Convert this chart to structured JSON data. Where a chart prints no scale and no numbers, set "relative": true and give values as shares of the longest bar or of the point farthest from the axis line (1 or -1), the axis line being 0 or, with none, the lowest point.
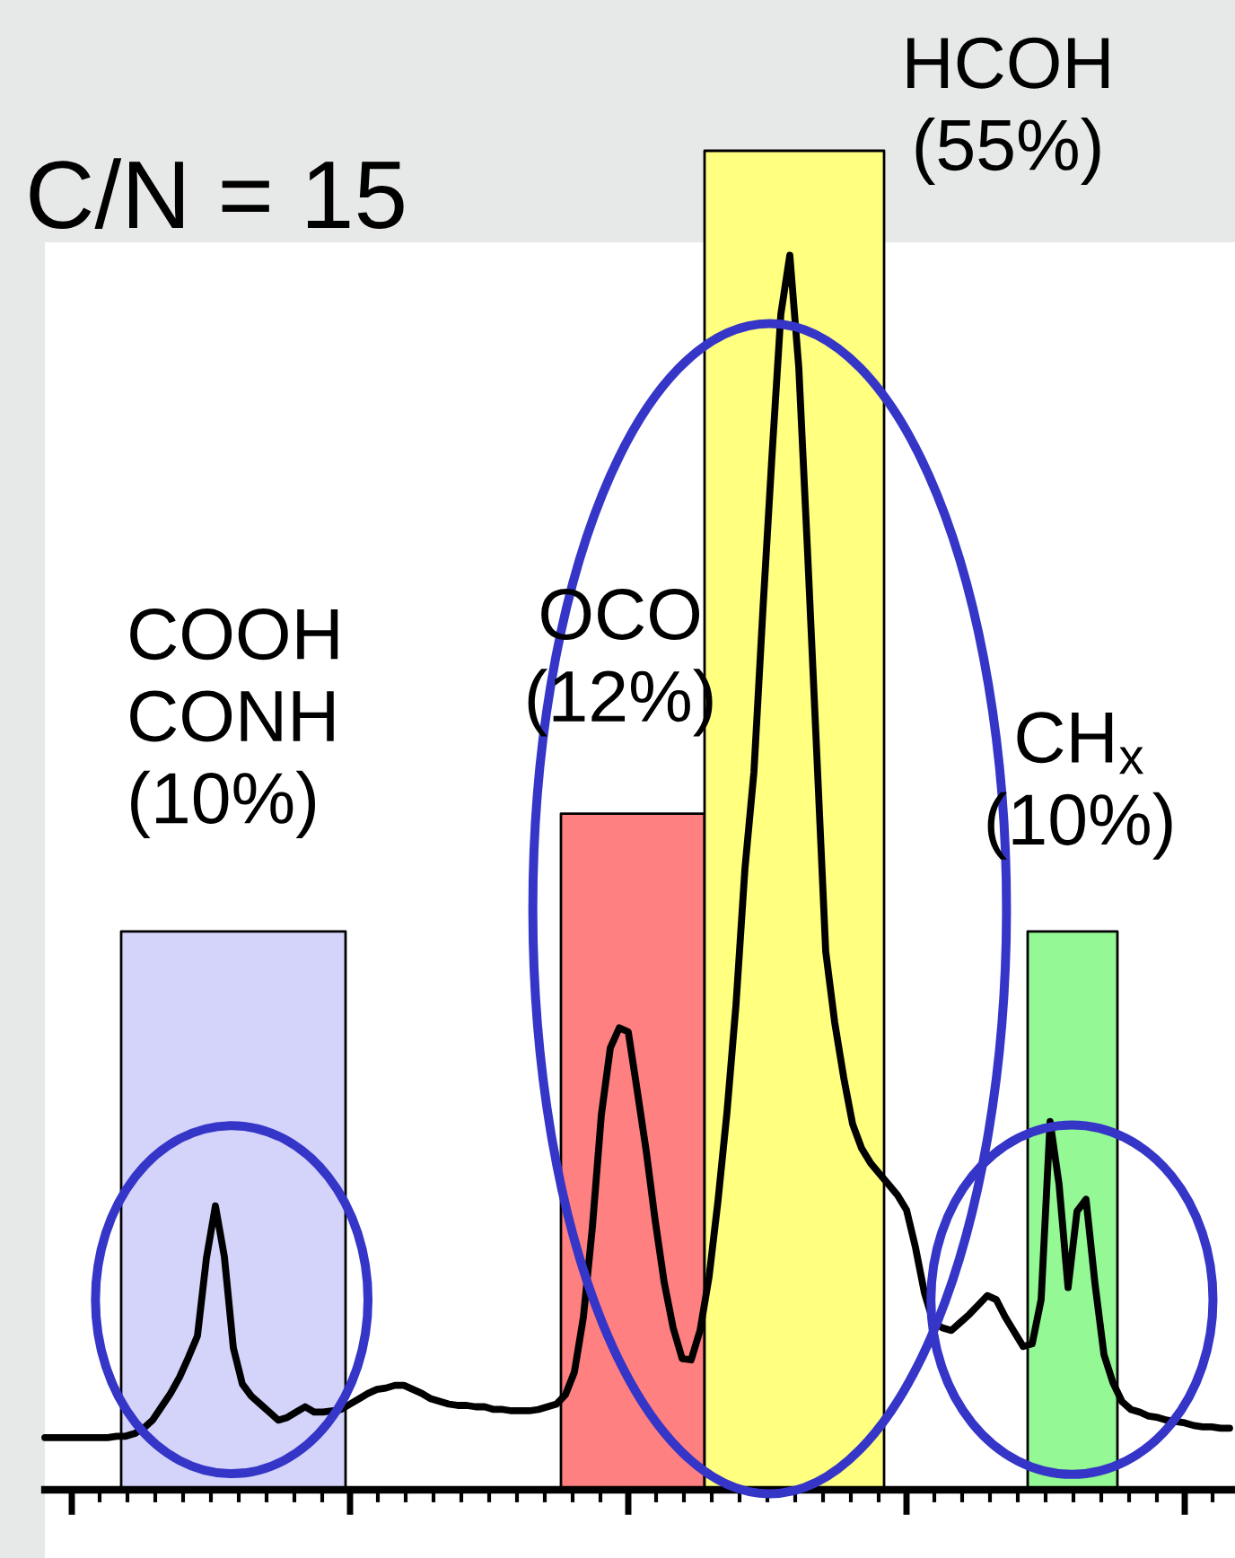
{
  "chart_data": {
    "type": "line",
    "title": "C/N = 15",
    "relative": true,
    "categories": [
      null,
      null,
      null,
      null,
      null,
      null,
      null,
      null,
      null,
      null,
      null,
      null,
      null,
      null,
      null,
      null,
      null,
      null,
      null,
      null,
      null,
      null,
      null,
      null,
      null,
      null,
      null,
      null,
      null,
      null,
      null,
      null,
      null,
      null,
      null,
      null,
      null,
      null,
      null,
      null,
      null,
      null,
      null,
      null,
      null,
      null,
      null,
      null,
      null,
      null,
      null,
      null,
      null,
      null,
      null,
      null,
      null,
      null,
      null,
      null,
      null,
      null,
      null,
      null,
      null,
      null,
      null,
      null,
      null,
      null,
      null,
      null,
      null,
      null,
      null,
      null,
      null,
      null,
      null,
      null,
      null,
      null,
      null,
      null,
      null,
      null,
      null,
      null,
      null,
      null,
      null,
      null,
      null,
      null,
      null,
      null,
      null,
      null,
      null,
      null,
      null,
      null,
      null,
      null,
      null,
      null,
      null,
      null,
      null,
      null,
      null,
      null,
      null,
      null,
      null,
      null,
      null,
      null,
      null,
      null,
      null,
      null,
      null,
      null,
      null,
      null,
      null,
      null,
      null,
      null,
      null,
      null,
      null
    ],
    "series": [
      {
        "type": "area",
        "name": "COOH\nCONH\n(10%)",
        "color": "#d4d4fb",
        "values": [
          null,
          null,
          null,
          null,
          null,
          null,
          null,
          null,
          null,
          0.417,
          0.417,
          0.417,
          0.417,
          0.417,
          0.417,
          0.417,
          0.417,
          0.417,
          0.417,
          0.417,
          0.417,
          0.417,
          0.417,
          0.417,
          0.417,
          0.417,
          0.417,
          0.417,
          0.417,
          0.417,
          0.417,
          0.417,
          0.417,
          0.417,
          null,
          null,
          null,
          null,
          null,
          null,
          null,
          null,
          null,
          null,
          null,
          null,
          null,
          null,
          null,
          null,
          null,
          null,
          null,
          null,
          null,
          null,
          null,
          null,
          null,
          null,
          null,
          null,
          null,
          null,
          null,
          null,
          null,
          null,
          null,
          null,
          null,
          null,
          null,
          null,
          null,
          null,
          null,
          null,
          null,
          null,
          null,
          null,
          null,
          null,
          null,
          null,
          null,
          null,
          null,
          null,
          null,
          null,
          null,
          null,
          null,
          null,
          null,
          null,
          null,
          null,
          null,
          null,
          null,
          null,
          null,
          null,
          null,
          null,
          null,
          null,
          null,
          null,
          null,
          null,
          null,
          null,
          null,
          null,
          null,
          null,
          null,
          null,
          null,
          null,
          null,
          null,
          null,
          null,
          null,
          null,
          null,
          null,
          null
        ]
      },
      {
        "type": "area",
        "name": "OCO\n(12%)",
        "color": "#ff8080",
        "values": [
          null,
          null,
          null,
          null,
          null,
          null,
          null,
          null,
          null,
          null,
          null,
          null,
          null,
          null,
          null,
          null,
          null,
          null,
          null,
          null,
          null,
          null,
          null,
          null,
          null,
          null,
          null,
          null,
          null,
          null,
          null,
          null,
          null,
          null,
          null,
          null,
          null,
          null,
          null,
          null,
          null,
          null,
          null,
          null,
          null,
          null,
          null,
          null,
          null,
          null,
          null,
          null,
          null,
          null,
          null,
          null,
          null,
          null,
          0.505,
          0.505,
          0.505,
          0.505,
          0.505,
          0.505,
          0.505,
          0.505,
          0.505,
          0.505,
          0.505,
          0.505,
          0.505,
          0.505,
          0.505,
          0.505,
          null,
          null,
          null,
          null,
          null,
          null,
          null,
          null,
          null,
          null,
          null,
          null,
          null,
          null,
          null,
          null,
          null,
          null,
          null,
          null,
          null,
          null,
          null,
          null,
          null,
          null,
          null,
          null,
          null,
          null,
          null,
          null,
          null,
          null,
          null,
          null,
          null,
          null,
          null,
          null,
          null,
          null,
          null,
          null,
          null,
          null,
          null,
          null,
          null,
          null,
          null,
          null,
          null,
          null,
          null,
          null,
          null,
          null,
          null
        ]
      },
      {
        "type": "area",
        "name": "HCOH\n(55%)",
        "color": "#ffff80",
        "values": [
          null,
          null,
          null,
          null,
          null,
          null,
          null,
          null,
          null,
          null,
          null,
          null,
          null,
          null,
          null,
          null,
          null,
          null,
          null,
          null,
          null,
          null,
          null,
          null,
          null,
          null,
          null,
          null,
          null,
          null,
          null,
          null,
          null,
          null,
          null,
          null,
          null,
          null,
          null,
          null,
          null,
          null,
          null,
          null,
          null,
          null,
          null,
          null,
          null,
          null,
          null,
          null,
          null,
          null,
          null,
          null,
          null,
          null,
          null,
          null,
          null,
          null,
          null,
          null,
          null,
          null,
          null,
          null,
          null,
          null,
          null,
          null,
          null,
          null,
          1,
          1,
          1,
          1,
          1,
          1,
          1,
          1,
          1,
          1,
          1,
          1,
          1,
          1,
          1,
          1,
          1,
          1,
          1,
          1,
          null,
          null,
          null,
          null,
          null,
          null,
          null,
          null,
          null,
          null,
          null,
          null,
          null,
          null,
          null,
          null,
          null,
          null,
          null,
          null,
          null,
          null,
          null,
          null,
          null,
          null,
          null,
          null,
          null,
          null,
          null,
          null,
          null,
          null,
          null,
          null,
          null,
          null,
          null
        ]
      },
      {
        "type": "area",
        "name": "CH$_{x}$\n(10%)",
        "color": "#94f894",
        "values": [
          null,
          null,
          null,
          null,
          null,
          null,
          null,
          null,
          null,
          null,
          null,
          null,
          null,
          null,
          null,
          null,
          null,
          null,
          null,
          null,
          null,
          null,
          null,
          null,
          null,
          null,
          null,
          null,
          null,
          null,
          null,
          null,
          null,
          null,
          null,
          null,
          null,
          null,
          null,
          null,
          null,
          null,
          null,
          null,
          null,
          null,
          null,
          null,
          null,
          null,
          null,
          null,
          null,
          null,
          null,
          null,
          null,
          null,
          null,
          null,
          null,
          null,
          null,
          null,
          null,
          null,
          null,
          null,
          null,
          null,
          null,
          null,
          null,
          null,
          null,
          null,
          null,
          null,
          null,
          null,
          null,
          null,
          null,
          null,
          null,
          null,
          null,
          null,
          null,
          null,
          null,
          null,
          null,
          null,
          null,
          null,
          null,
          null,
          null,
          null,
          null,
          null,
          null,
          null,
          null,
          null,
          null,
          null,
          null,
          null,
          0.417,
          0.417,
          0.417,
          0.417,
          0.417,
          0.417,
          0.417,
          0.417,
          0.417,
          0.417,
          null,
          null,
          null,
          null,
          null,
          null,
          null,
          null,
          null,
          null,
          null,
          null,
          null
        ]
      },
      {
        "color": "#000000",
        "values": [
          0.039,
          0.039,
          0.039,
          0.039,
          0.039,
          0.039,
          0.039,
          0.039,
          0.04,
          0.04,
          0.042,
          0.046,
          0.052,
          0.062,
          0.072,
          0.084,
          0.099,
          0.115,
          0.173,
          0.212,
          0.174,
          0.106,
          0.079,
          0.07,
          0.064,
          0.058,
          0.052,
          0.054,
          0.058,
          0.062,
          0.058,
          0.058,
          0.059,
          0.06,
          0.064,
          0.068,
          0.072,
          0.075,
          0.076,
          0.078,
          0.078,
          0.075,
          0.072,
          0.068,
          0.066,
          0.064,
          0.063,
          0.063,
          0.062,
          0.062,
          0.06,
          0.06,
          0.059,
          0.059,
          0.059,
          0.06,
          0.062,
          0.064,
          0.071,
          0.088,
          0.129,
          0.196,
          0.28,
          0.33,
          0.345,
          0.342,
          0.298,
          0.253,
          0.201,
          0.155,
          0.121,
          0.098,
          0.097,
          0.119,
          0.159,
          0.216,
          0.282,
          0.362,
          0.464,
          0.536,
          0.657,
          0.771,
          0.878,
          0.922,
          0.838,
          0.697,
          0.55,
          0.402,
          0.349,
          0.308,
          0.273,
          0.255,
          0.244,
          0.236,
          0.228,
          0.22,
          0.209,
          0.181,
          0.147,
          0.125,
          0.121,
          0.119,
          0.125,
          0.131,
          0.138,
          0.145,
          0.142,
          0.129,
          0.118,
          0.107,
          0.109,
          0.142,
          0.275,
          0.228,
          0.151,
          0.208,
          0.217,
          0.154,
          0.101,
          0.08,
          0.066,
          0.06,
          0.058,
          0.055,
          0.054,
          0.052,
          0.051,
          0.05,
          0.048,
          0.047,
          0.047,
          0.046,
          0.046
        ]
      }
    ]
  }
}
